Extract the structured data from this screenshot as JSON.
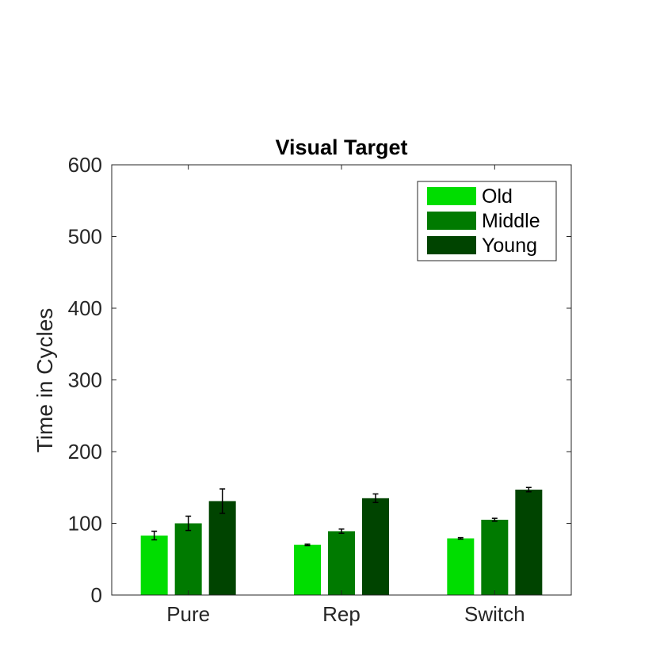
{
  "chart_data": {
    "type": "bar",
    "title": "Visual Target",
    "xlabel": "",
    "ylabel": "Time in Cycles",
    "categories": [
      "Pure",
      "Rep",
      "Switch"
    ],
    "ylim": [
      0,
      600
    ],
    "yticks": [
      0,
      100,
      200,
      300,
      400,
      500,
      600
    ],
    "grid": false,
    "legend_position": "top-right",
    "series": [
      {
        "name": "Old",
        "color": "#00dd00",
        "values": [
          83,
          70,
          79
        ],
        "errors": [
          6,
          1,
          1
        ]
      },
      {
        "name": "Middle",
        "color": "#007a00",
        "values": [
          100,
          89,
          105
        ],
        "errors": [
          10,
          3,
          2
        ]
      },
      {
        "name": "Young",
        "color": "#004400",
        "values": [
          131,
          135,
          147
        ],
        "errors": [
          17,
          6,
          3
        ]
      }
    ]
  }
}
